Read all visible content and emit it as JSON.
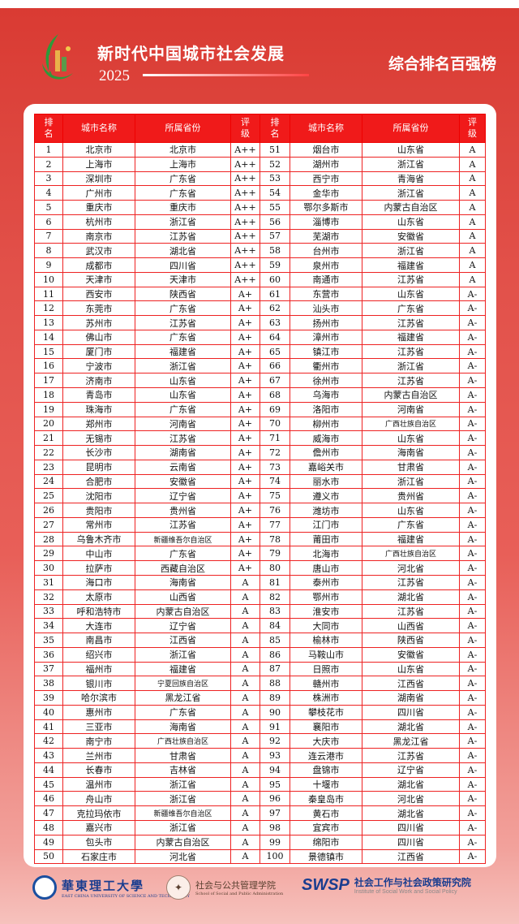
{
  "header": {
    "title": "新时代中国城市社会发展",
    "year": "2025",
    "subtitle": "综合排名百强榜"
  },
  "table": {
    "columns": [
      "排名",
      "城市名称",
      "所属省份",
      "评级",
      "排名",
      "城市名称",
      "所属省份",
      "评级"
    ],
    "rows": [
      [
        "1",
        "北京市",
        "北京市",
        "A++",
        "51",
        "烟台市",
        "山东省",
        "A"
      ],
      [
        "2",
        "上海市",
        "上海市",
        "A++",
        "52",
        "湖州市",
        "浙江省",
        "A"
      ],
      [
        "3",
        "深圳市",
        "广东省",
        "A++",
        "53",
        "西宁市",
        "青海省",
        "A"
      ],
      [
        "4",
        "广州市",
        "广东省",
        "A++",
        "54",
        "金华市",
        "浙江省",
        "A"
      ],
      [
        "5",
        "重庆市",
        "重庆市",
        "A++",
        "55",
        "鄂尔多斯市",
        "内蒙古自治区",
        "A"
      ],
      [
        "6",
        "杭州市",
        "浙江省",
        "A++",
        "56",
        "淄博市",
        "山东省",
        "A"
      ],
      [
        "7",
        "南京市",
        "江苏省",
        "A++",
        "57",
        "芜湖市",
        "安徽省",
        "A"
      ],
      [
        "8",
        "武汉市",
        "湖北省",
        "A++",
        "58",
        "台州市",
        "浙江省",
        "A"
      ],
      [
        "9",
        "成都市",
        "四川省",
        "A++",
        "59",
        "泉州市",
        "福建省",
        "A"
      ],
      [
        "10",
        "天津市",
        "天津市",
        "A++",
        "60",
        "南通市",
        "江苏省",
        "A"
      ],
      [
        "11",
        "西安市",
        "陕西省",
        "A+",
        "61",
        "东营市",
        "山东省",
        "A-"
      ],
      [
        "12",
        "东莞市",
        "广东省",
        "A+",
        "62",
        "汕头市",
        "广东省",
        "A-"
      ],
      [
        "13",
        "苏州市",
        "江苏省",
        "A+",
        "63",
        "扬州市",
        "江苏省",
        "A-"
      ],
      [
        "14",
        "佛山市",
        "广东省",
        "A+",
        "64",
        "漳州市",
        "福建省",
        "A-"
      ],
      [
        "15",
        "厦门市",
        "福建省",
        "A+",
        "65",
        "镇江市",
        "江苏省",
        "A-"
      ],
      [
        "16",
        "宁波市",
        "浙江省",
        "A+",
        "66",
        "衢州市",
        "浙江省",
        "A-"
      ],
      [
        "17",
        "济南市",
        "山东省",
        "A+",
        "67",
        "徐州市",
        "江苏省",
        "A-"
      ],
      [
        "18",
        "青岛市",
        "山东省",
        "A+",
        "68",
        "乌海市",
        "内蒙古自治区",
        "A-"
      ],
      [
        "19",
        "珠海市",
        "广东省",
        "A+",
        "69",
        "洛阳市",
        "河南省",
        "A-"
      ],
      [
        "20",
        "郑州市",
        "河南省",
        "A+",
        "70",
        "柳州市",
        "广西壮族自治区",
        "A-"
      ],
      [
        "21",
        "无锡市",
        "江苏省",
        "A+",
        "71",
        "威海市",
        "山东省",
        "A-"
      ],
      [
        "22",
        "长沙市",
        "湖南省",
        "A+",
        "72",
        "儋州市",
        "海南省",
        "A-"
      ],
      [
        "23",
        "昆明市",
        "云南省",
        "A+",
        "73",
        "嘉峪关市",
        "甘肃省",
        "A-"
      ],
      [
        "24",
        "合肥市",
        "安徽省",
        "A+",
        "74",
        "丽水市",
        "浙江省",
        "A-"
      ],
      [
        "25",
        "沈阳市",
        "辽宁省",
        "A+",
        "75",
        "遵义市",
        "贵州省",
        "A-"
      ],
      [
        "26",
        "贵阳市",
        "贵州省",
        "A+",
        "76",
        "潍坊市",
        "山东省",
        "A-"
      ],
      [
        "27",
        "常州市",
        "江苏省",
        "A+",
        "77",
        "江门市",
        "广东省",
        "A-"
      ],
      [
        "28",
        "乌鲁木齐市",
        "新疆维吾尔自治区",
        "A+",
        "78",
        "莆田市",
        "福建省",
        "A-"
      ],
      [
        "29",
        "中山市",
        "广东省",
        "A+",
        "79",
        "北海市",
        "广西壮族自治区",
        "A-"
      ],
      [
        "30",
        "拉萨市",
        "西藏自治区",
        "A+",
        "80",
        "唐山市",
        "河北省",
        "A-"
      ],
      [
        "31",
        "海口市",
        "海南省",
        "A",
        "81",
        "泰州市",
        "江苏省",
        "A-"
      ],
      [
        "32",
        "太原市",
        "山西省",
        "A",
        "82",
        "鄂州市",
        "湖北省",
        "A-"
      ],
      [
        "33",
        "呼和浩特市",
        "内蒙古自治区",
        "A",
        "83",
        "淮安市",
        "江苏省",
        "A-"
      ],
      [
        "34",
        "大连市",
        "辽宁省",
        "A",
        "84",
        "大同市",
        "山西省",
        "A-"
      ],
      [
        "35",
        "南昌市",
        "江西省",
        "A",
        "85",
        "榆林市",
        "陕西省",
        "A-"
      ],
      [
        "36",
        "绍兴市",
        "浙江省",
        "A",
        "86",
        "马鞍山市",
        "安徽省",
        "A-"
      ],
      [
        "37",
        "福州市",
        "福建省",
        "A",
        "87",
        "日照市",
        "山东省",
        "A-"
      ],
      [
        "38",
        "银川市",
        "宁夏回族自治区",
        "A",
        "88",
        "赣州市",
        "江西省",
        "A-"
      ],
      [
        "39",
        "哈尔滨市",
        "黑龙江省",
        "A",
        "89",
        "株洲市",
        "湖南省",
        "A-"
      ],
      [
        "40",
        "惠州市",
        "广东省",
        "A",
        "90",
        "攀枝花市",
        "四川省",
        "A-"
      ],
      [
        "41",
        "三亚市",
        "海南省",
        "A",
        "91",
        "襄阳市",
        "湖北省",
        "A-"
      ],
      [
        "42",
        "南宁市",
        "广西壮族自治区",
        "A",
        "92",
        "大庆市",
        "黑龙江省",
        "A-"
      ],
      [
        "43",
        "兰州市",
        "甘肃省",
        "A",
        "93",
        "连云港市",
        "江苏省",
        "A-"
      ],
      [
        "44",
        "长春市",
        "吉林省",
        "A",
        "94",
        "盘锦市",
        "辽宁省",
        "A-"
      ],
      [
        "45",
        "温州市",
        "浙江省",
        "A",
        "95",
        "十堰市",
        "湖北省",
        "A-"
      ],
      [
        "46",
        "舟山市",
        "浙江省",
        "A",
        "96",
        "秦皇岛市",
        "河北省",
        "A-"
      ],
      [
        "47",
        "克拉玛依市",
        "新疆维吾尔自治区",
        "A",
        "97",
        "黄石市",
        "湖北省",
        "A-"
      ],
      [
        "48",
        "嘉兴市",
        "浙江省",
        "A",
        "98",
        "宜宾市",
        "四川省",
        "A-"
      ],
      [
        "49",
        "包头市",
        "内蒙古自治区",
        "A",
        "99",
        "绵阳市",
        "四川省",
        "A-"
      ],
      [
        "50",
        "石家庄市",
        "河北省",
        "A",
        "100",
        "景德镇市",
        "江西省",
        "A-"
      ]
    ]
  },
  "footer": {
    "ecust_name": "華東理工大學",
    "ecust_en": "EAST CHINA UNIVERSITY OF SCIENCE AND TECHNOLOGY",
    "school_name": "社会与公共管理学院",
    "school_en": "School of Social and Public Administration",
    "swsp_logo": "SWSP",
    "institute_name": "社会工作与社会政策研究院",
    "institute_en": "Institute of Social Work and Social Policy"
  },
  "colors": {
    "accent": "#f01a1a",
    "background": "#e04a42"
  }
}
